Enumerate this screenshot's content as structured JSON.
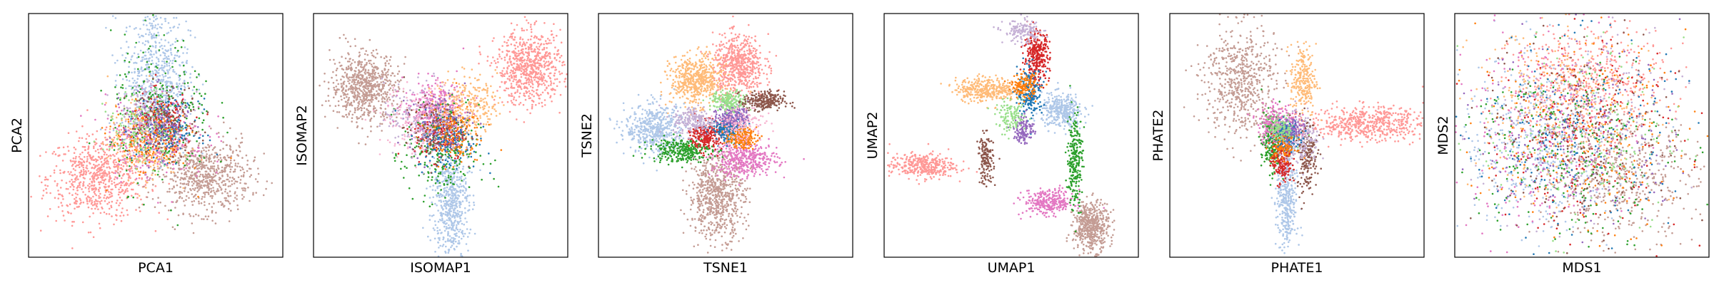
{
  "colors": [
    "#1f77b4",
    "#aec7e8",
    "#ff7f0e",
    "#ffbb78",
    "#2ca02c",
    "#98df8a",
    "#d62728",
    "#ff9896",
    "#9467bd",
    "#c5b0d5",
    "#8c564b",
    "#c49c94",
    "#e377c2",
    "#f7b6d2"
  ],
  "chart_data": [
    {
      "type": "scatter",
      "xlabel": "PCA1",
      "ylabel": "PCA2",
      "ticks": "none",
      "xlim": [
        -1.0,
        1.0
      ],
      "ylim": [
        -1.0,
        1.0
      ],
      "clusters": [
        {
          "color": 7,
          "center": [
            -0.45,
            -0.35
          ],
          "spread": [
            0.2,
            0.17
          ],
          "n": 700
        },
        {
          "color": 11,
          "center": [
            0.38,
            -0.33
          ],
          "spread": [
            0.18,
            0.15
          ],
          "n": 700
        },
        {
          "color": 1,
          "center": [
            0.0,
            0.5
          ],
          "spread": [
            0.13,
            0.3
          ],
          "n": 650
        },
        {
          "color": 3,
          "center": [
            -0.1,
            -0.05
          ],
          "spread": [
            0.14,
            0.15
          ],
          "n": 300
        },
        {
          "color": 12,
          "center": [
            0.0,
            0.0
          ],
          "spread": [
            0.2,
            0.18
          ],
          "n": 250
        },
        {
          "color": 4,
          "center": [
            0.05,
            0.2
          ],
          "spread": [
            0.2,
            0.3
          ],
          "n": 250
        },
        {
          "color": 6,
          "center": [
            0.05,
            0.1
          ],
          "spread": [
            0.12,
            0.12
          ],
          "n": 180
        },
        {
          "color": 0,
          "center": [
            0.1,
            0.05
          ],
          "spread": [
            0.12,
            0.12
          ],
          "n": 150
        },
        {
          "color": 2,
          "center": [
            -0.05,
            -0.05
          ],
          "spread": [
            0.15,
            0.15
          ],
          "n": 150
        },
        {
          "color": 8,
          "center": [
            0.0,
            0.1
          ],
          "spread": [
            0.13,
            0.13
          ],
          "n": 120
        },
        {
          "color": 10,
          "center": [
            0.05,
            0.12
          ],
          "spread": [
            0.14,
            0.14
          ],
          "n": 120
        },
        {
          "color": 5,
          "center": [
            -0.1,
            0.05
          ],
          "spread": [
            0.15,
            0.15
          ],
          "n": 120
        },
        {
          "color": 9,
          "center": [
            -0.05,
            0.15
          ],
          "spread": [
            0.15,
            0.15
          ],
          "n": 120
        }
      ]
    },
    {
      "type": "scatter",
      "xlabel": "ISOMAP1",
      "ylabel": "ISOMAP2",
      "ticks": "none",
      "xlim": [
        -1.0,
        1.0
      ],
      "ylim": [
        -1.0,
        1.0
      ],
      "clusters": [
        {
          "color": 11,
          "center": [
            -0.6,
            0.4
          ],
          "spread": [
            0.13,
            0.14
          ],
          "n": 700
        },
        {
          "color": 7,
          "center": [
            0.7,
            0.55
          ],
          "spread": [
            0.13,
            0.15
          ],
          "n": 700
        },
        {
          "color": 1,
          "center": [
            0.08,
            -0.55
          ],
          "spread": [
            0.07,
            0.22
          ],
          "n": 550
        },
        {
          "color": 12,
          "center": [
            -0.05,
            0.2
          ],
          "spread": [
            0.12,
            0.12
          ],
          "n": 350
        },
        {
          "color": 3,
          "center": [
            0.2,
            0.25
          ],
          "spread": [
            0.12,
            0.12
          ],
          "n": 300
        },
        {
          "color": 13,
          "center": [
            -0.15,
            0.1
          ],
          "spread": [
            0.15,
            0.15
          ],
          "n": 200
        },
        {
          "color": 4,
          "center": [
            0.0,
            -0.15
          ],
          "spread": [
            0.15,
            0.2
          ],
          "n": 250
        },
        {
          "color": 6,
          "center": [
            0.0,
            0.0
          ],
          "spread": [
            0.1,
            0.1
          ],
          "n": 150
        },
        {
          "color": 0,
          "center": [
            0.05,
            -0.05
          ],
          "spread": [
            0.12,
            0.12
          ],
          "n": 150
        },
        {
          "color": 8,
          "center": [
            0.0,
            0.1
          ],
          "spread": [
            0.12,
            0.12
          ],
          "n": 130
        },
        {
          "color": 10,
          "center": [
            -0.05,
            0.05
          ],
          "spread": [
            0.12,
            0.12
          ],
          "n": 130
        },
        {
          "color": 2,
          "center": [
            0.08,
            0.0
          ],
          "spread": [
            0.12,
            0.12
          ],
          "n": 130
        },
        {
          "color": 9,
          "center": [
            -0.15,
            0.15
          ],
          "spread": [
            0.15,
            0.15
          ],
          "n": 150
        }
      ]
    },
    {
      "type": "scatter",
      "xlabel": "TSNE1",
      "ylabel": "TSNE2",
      "ticks": "none",
      "xlim": [
        -1.0,
        1.0
      ],
      "ylim": [
        -1.0,
        1.0
      ],
      "clusters": [
        {
          "color": 7,
          "center": [
            0.1,
            0.58
          ],
          "spread": [
            0.1,
            0.12
          ],
          "n": 600
        },
        {
          "color": 3,
          "center": [
            -0.23,
            0.45
          ],
          "spread": [
            0.1,
            0.1
          ],
          "n": 550
        },
        {
          "color": 11,
          "center": [
            -0.07,
            -0.5
          ],
          "spread": [
            0.11,
            0.17
          ],
          "n": 700
        },
        {
          "color": 1,
          "center": [
            -0.55,
            0.05
          ],
          "spread": [
            0.12,
            0.1
          ],
          "n": 500
        },
        {
          "color": 12,
          "center": [
            0.15,
            -0.2
          ],
          "spread": [
            0.13,
            0.07
          ],
          "n": 400
        },
        {
          "color": 4,
          "center": [
            -0.35,
            -0.12
          ],
          "spread": [
            0.12,
            0.05
          ],
          "n": 300
        },
        {
          "color": 6,
          "center": [
            -0.15,
            0.0
          ],
          "spread": [
            0.06,
            0.06
          ],
          "n": 250
        },
        {
          "color": 0,
          "center": [
            0.02,
            0.05
          ],
          "spread": [
            0.06,
            0.05
          ],
          "n": 250
        },
        {
          "color": 2,
          "center": [
            0.12,
            -0.02
          ],
          "spread": [
            0.06,
            0.04
          ],
          "n": 200
        },
        {
          "color": 8,
          "center": [
            0.06,
            0.16
          ],
          "spread": [
            0.06,
            0.05
          ],
          "n": 200
        },
        {
          "color": 5,
          "center": [
            0.03,
            0.28
          ],
          "spread": [
            0.07,
            0.04
          ],
          "n": 200
        },
        {
          "color": 10,
          "center": [
            0.3,
            0.28
          ],
          "spread": [
            0.08,
            0.04
          ],
          "n": 250
        },
        {
          "color": 9,
          "center": [
            -0.25,
            0.12
          ],
          "spread": [
            0.08,
            0.06
          ],
          "n": 200
        },
        {
          "color": 13,
          "center": [
            0.1,
            0.1
          ],
          "spread": [
            0.1,
            0.08
          ],
          "n": 150
        }
      ]
    },
    {
      "type": "scatter",
      "xlabel": "UMAP1",
      "ylabel": "UMAP2",
      "ticks": "none",
      "xlim": [
        -1.0,
        1.0
      ],
      "ylim": [
        -1.0,
        1.0
      ],
      "clusters": [
        {
          "color": 7,
          "center": [
            -0.7,
            -0.25
          ],
          "spread": [
            0.13,
            0.05
          ],
          "n": 350
        },
        {
          "color": 3,
          "center": [
            -0.2,
            0.38
          ],
          "spread": [
            0.12,
            0.05
          ],
          "n": 350
        },
        {
          "color": 1,
          "center": [
            0.4,
            0.2
          ],
          "spread": [
            0.08,
            0.07
          ],
          "n": 350
        },
        {
          "color": 12,
          "center": [
            0.3,
            -0.55
          ],
          "spread": [
            0.1,
            0.05
          ],
          "n": 300
        },
        {
          "color": 11,
          "center": [
            0.63,
            -0.75
          ],
          "spread": [
            0.07,
            0.1
          ],
          "n": 500
        },
        {
          "color": 4,
          "center": [
            0.5,
            -0.2
          ],
          "spread": [
            0.03,
            0.2
          ],
          "n": 250
        },
        {
          "color": 6,
          "center": [
            0.2,
            0.65
          ],
          "spread": [
            0.05,
            0.1
          ],
          "n": 300
        },
        {
          "color": 0,
          "center": [
            0.15,
            0.35
          ],
          "spread": [
            0.05,
            0.1
          ],
          "n": 200
        },
        {
          "color": 2,
          "center": [
            0.1,
            0.4
          ],
          "spread": [
            0.05,
            0.05
          ],
          "n": 150
        },
        {
          "color": 9,
          "center": [
            0.1,
            0.85
          ],
          "spread": [
            0.08,
            0.05
          ],
          "n": 150
        },
        {
          "color": 10,
          "center": [
            -0.2,
            -0.2
          ],
          "spread": [
            0.03,
            0.1
          ],
          "n": 150
        },
        {
          "color": 8,
          "center": [
            0.1,
            0.05
          ],
          "spread": [
            0.04,
            0.06
          ],
          "n": 120
        },
        {
          "color": 5,
          "center": [
            0.0,
            0.15
          ],
          "spread": [
            0.06,
            0.06
          ],
          "n": 120
        }
      ]
    },
    {
      "type": "scatter",
      "xlabel": "PHATE1",
      "ylabel": "PHATE2",
      "ticks": "none",
      "xlim": [
        -1.0,
        1.0
      ],
      "ylim": [
        -1.0,
        1.0
      ],
      "clusters": [
        {
          "color": 11,
          "center": [
            -0.45,
            0.45
          ],
          "spread": [
            0.14,
            0.23
          ],
          "n": 600
        },
        {
          "color": 7,
          "center": [
            0.55,
            0.1
          ],
          "spread": [
            0.23,
            0.07
          ],
          "n": 550
        },
        {
          "color": 1,
          "center": [
            -0.08,
            -0.55
          ],
          "spread": [
            0.04,
            0.2
          ],
          "n": 350
        },
        {
          "color": 3,
          "center": [
            0.05,
            0.45
          ],
          "spread": [
            0.05,
            0.15
          ],
          "n": 250
        },
        {
          "color": 10,
          "center": [
            0.08,
            -0.15
          ],
          "spread": [
            0.04,
            0.15
          ],
          "n": 200
        },
        {
          "color": 4,
          "center": [
            -0.2,
            -0.05
          ],
          "spread": [
            0.04,
            0.12
          ],
          "n": 250
        },
        {
          "color": 6,
          "center": [
            -0.12,
            -0.2
          ],
          "spread": [
            0.04,
            0.1
          ],
          "n": 200
        },
        {
          "color": 12,
          "center": [
            -0.15,
            0.1
          ],
          "spread": [
            0.08,
            0.08
          ],
          "n": 250
        },
        {
          "color": 9,
          "center": [
            0.02,
            -0.05
          ],
          "spread": [
            0.08,
            0.1
          ],
          "n": 200
        },
        {
          "color": 0,
          "center": [
            -0.08,
            0.0
          ],
          "spread": [
            0.05,
            0.06
          ],
          "n": 150
        },
        {
          "color": 2,
          "center": [
            -0.1,
            -0.1
          ],
          "spread": [
            0.05,
            0.05
          ],
          "n": 100
        },
        {
          "color": 8,
          "center": [
            -0.05,
            0.05
          ],
          "spread": [
            0.05,
            0.05
          ],
          "n": 100
        },
        {
          "color": 5,
          "center": [
            -0.12,
            0.05
          ],
          "spread": [
            0.05,
            0.05
          ],
          "n": 100
        }
      ]
    },
    {
      "type": "scatter",
      "xlabel": "MDS1",
      "ylabel": "MDS2",
      "ticks": "none",
      "xlim": [
        -1.0,
        1.0
      ],
      "ylim": [
        -1.0,
        1.0
      ],
      "clusters": [
        {
          "color": 7,
          "center": [
            0.05,
            0.45
          ],
          "spread": [
            0.3,
            0.22
          ],
          "n": 500
        },
        {
          "color": 11,
          "center": [
            0.3,
            -0.35
          ],
          "spread": [
            0.3,
            0.25
          ],
          "n": 500
        },
        {
          "color": 1,
          "center": [
            -0.35,
            -0.05
          ],
          "spread": [
            0.3,
            0.35
          ],
          "n": 450
        },
        {
          "color": 3,
          "center": [
            -0.15,
            0.2
          ],
          "spread": [
            0.35,
            0.35
          ],
          "n": 350
        },
        {
          "color": 12,
          "center": [
            -0.3,
            0.0
          ],
          "spread": [
            0.35,
            0.4
          ],
          "n": 250
        },
        {
          "color": 4,
          "center": [
            -0.1,
            -0.1
          ],
          "spread": [
            0.4,
            0.4
          ],
          "n": 250
        },
        {
          "color": 0,
          "center": [
            -0.1,
            0.0
          ],
          "spread": [
            0.4,
            0.4
          ],
          "n": 200
        },
        {
          "color": 6,
          "center": [
            0.0,
            0.0
          ],
          "spread": [
            0.4,
            0.4
          ],
          "n": 200
        },
        {
          "color": 2,
          "center": [
            0.0,
            0.0
          ],
          "spread": [
            0.4,
            0.4
          ],
          "n": 200
        },
        {
          "color": 8,
          "center": [
            0.0,
            0.0
          ],
          "spread": [
            0.4,
            0.4
          ],
          "n": 180
        },
        {
          "color": 10,
          "center": [
            0.0,
            0.0
          ],
          "spread": [
            0.4,
            0.4
          ],
          "n": 180
        },
        {
          "color": 9,
          "center": [
            0.0,
            0.0
          ],
          "spread": [
            0.4,
            0.4
          ],
          "n": 180
        },
        {
          "color": 5,
          "center": [
            0.0,
            0.0
          ],
          "spread": [
            0.4,
            0.4
          ],
          "n": 180
        }
      ]
    }
  ]
}
